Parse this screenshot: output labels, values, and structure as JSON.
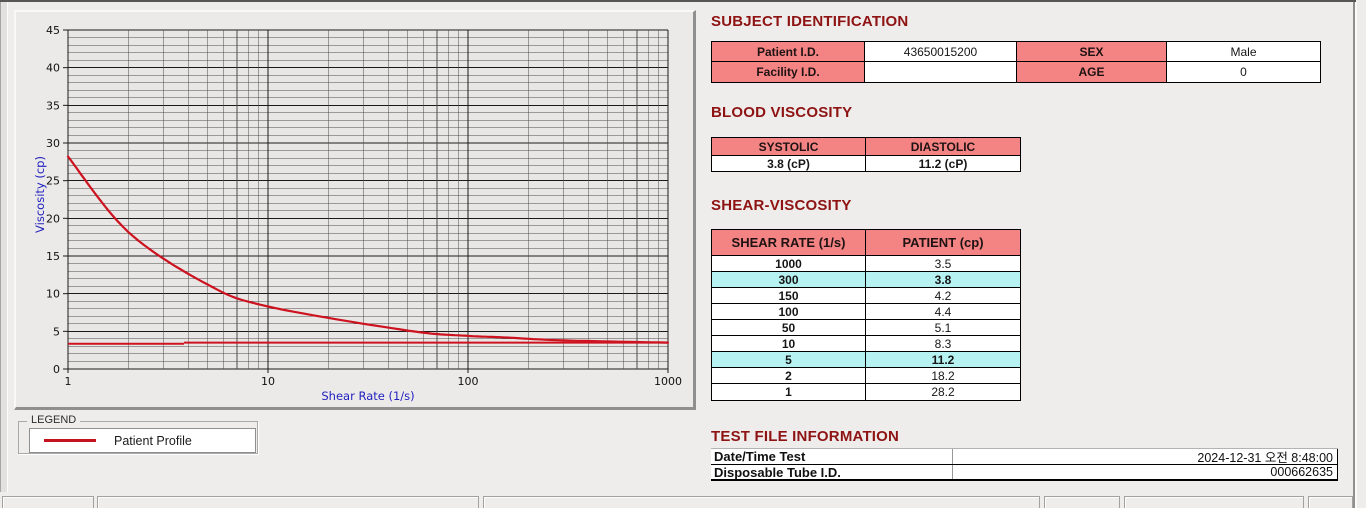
{
  "colors": {
    "header_pink": "#f48484",
    "row_highlight_cyan": "#b7f2f2",
    "section_title_red": "#8e1313",
    "chart_line_red": "#cd1220",
    "axis_label_blue": "#1f1fbf",
    "background": "#efedec"
  },
  "legend": {
    "caption": "LEGEND",
    "series": "Patient Profile"
  },
  "chart_data": {
    "type": "line",
    "title": "",
    "xlabel": "Shear Rate (1/s)",
    "ylabel": "Viscosity (cp)",
    "xscale": "log",
    "xlim": [
      1,
      1000
    ],
    "ylim": [
      0,
      45
    ],
    "xticks": [
      1,
      10,
      100,
      1000
    ],
    "yticks": [
      0,
      5,
      10,
      15,
      20,
      25,
      30,
      35,
      40,
      45
    ],
    "y_minor_step": 1,
    "grid": true,
    "legend_position": "outside-bottom-left",
    "series": [
      {
        "name": "Patient Profile",
        "color": "#cd1220",
        "x": [
          1,
          2,
          5,
          10,
          50,
          100,
          150,
          300,
          1000
        ],
        "values": [
          28.2,
          18.2,
          11.2,
          8.3,
          5.1,
          4.4,
          4.2,
          3.8,
          3.5
        ]
      }
    ],
    "flat_line": {
      "color": "#cd1220",
      "segments": [
        {
          "x1": 1,
          "x2": 3.8,
          "y": 3.35
        },
        {
          "x1": 3.8,
          "x2": 1000,
          "y": 3.5
        }
      ]
    }
  },
  "subject": {
    "title": "SUBJECT IDENTIFICATION",
    "row1": {
      "label_left": "Patient I.D.",
      "value_left": "43650015200",
      "label_right": "SEX",
      "value_right": "Male"
    },
    "row2": {
      "label_left": "Facility I.D.",
      "value_left": "",
      "label_right": "AGE",
      "value_right": "0"
    }
  },
  "blood": {
    "title": "BLOOD VISCOSITY",
    "header_systolic": "SYSTOLIC",
    "header_diastolic": "DIASTOLIC",
    "value_systolic": "3.8 (cP)",
    "value_diastolic": "11.2 (cP)"
  },
  "shear": {
    "title": "SHEAR-VISCOSITY",
    "header_rate": "SHEAR RATE (1/s)",
    "header_patient": "PATIENT (cp)",
    "rows": [
      {
        "rate": "1000",
        "value": "3.5",
        "highlight": false
      },
      {
        "rate": "300",
        "value": "3.8",
        "highlight": true
      },
      {
        "rate": "150",
        "value": "4.2",
        "highlight": false
      },
      {
        "rate": "100",
        "value": "4.4",
        "highlight": false
      },
      {
        "rate": "50",
        "value": "5.1",
        "highlight": false
      },
      {
        "rate": "10",
        "value": "8.3",
        "highlight": false
      },
      {
        "rate": "5",
        "value": "11.2",
        "highlight": true
      },
      {
        "rate": "2",
        "value": "18.2",
        "highlight": false
      },
      {
        "rate": "1",
        "value": "28.2",
        "highlight": false
      }
    ]
  },
  "test_file": {
    "title": "TEST FILE INFORMATION",
    "rows": [
      {
        "label": "Date/Time Test",
        "value": "2024-12-31  오전 8:48:00"
      },
      {
        "label": "Disposable Tube I.D.",
        "value": "000662635"
      }
    ]
  }
}
